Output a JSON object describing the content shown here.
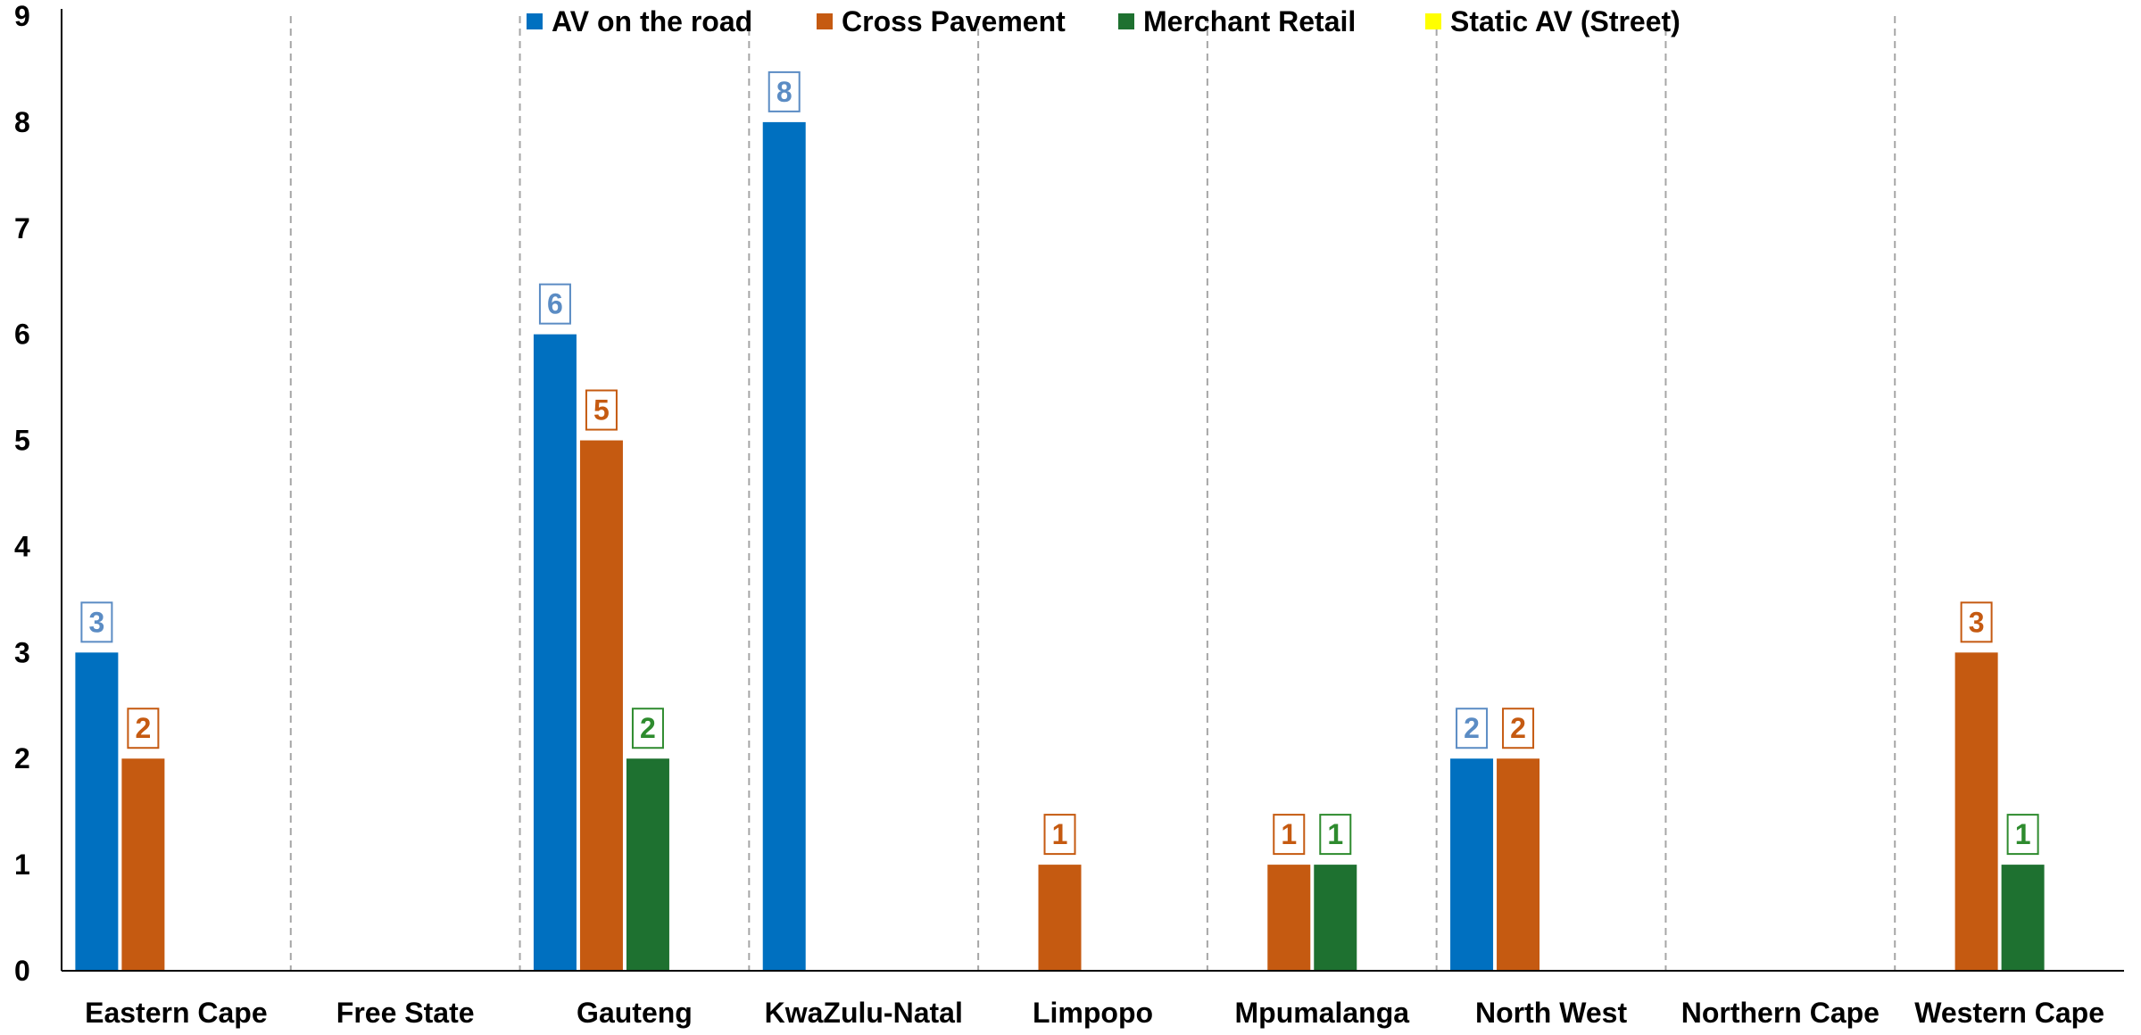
{
  "chart_data": {
    "type": "bar",
    "categories": [
      "Eastern Cape",
      "Free State",
      "Gauteng",
      "KwaZulu-Natal",
      "Limpopo",
      "Mpumalanga",
      "North West",
      "Northern Cape",
      "Western Cape"
    ],
    "series": [
      {
        "name": "AV on the road",
        "color": "#0070C0",
        "label_color": "#5B8CC4",
        "values": [
          3,
          0,
          6,
          8,
          0,
          0,
          2,
          0,
          0
        ]
      },
      {
        "name": "Cross Pavement",
        "color": "#C55A11",
        "label_color": "#C55A11",
        "values": [
          2,
          0,
          5,
          0,
          1,
          1,
          2,
          0,
          3
        ]
      },
      {
        "name": "Merchant Retail",
        "color": "#1E7130",
        "label_color": "#2E8B2E",
        "values": [
          0,
          0,
          2,
          0,
          0,
          1,
          0,
          0,
          1
        ]
      },
      {
        "name": "Static AV (Street)",
        "color": "#FFFF00",
        "label_color": "#CCCC00",
        "values": [
          0,
          0,
          0,
          0,
          0,
          0,
          0,
          0,
          0
        ]
      }
    ],
    "title": "",
    "xlabel": "",
    "ylabel": "",
    "ylim": [
      0,
      9
    ],
    "yticks": [
      "0",
      "1",
      "2",
      "3",
      "4",
      "5",
      "6",
      "7",
      "8",
      "9"
    ],
    "grid": "vertical dashed separators between categories",
    "legend_position": "top-center",
    "data_labels": "boxed, shown for non-zero values"
  }
}
